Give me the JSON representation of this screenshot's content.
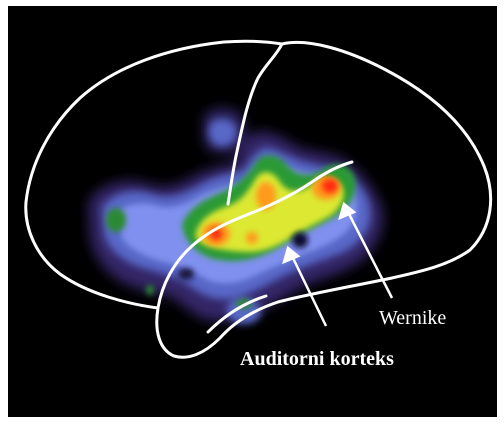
{
  "image": {
    "description_icon": "brain-activation-scan-icon",
    "background_color": "#000000",
    "outline_color": "#ffffff",
    "colormap": [
      "#3a2a7a",
      "#5a6ad0",
      "#7c8ef0",
      "#2e9a3a",
      "#d8e830",
      "#ff9a1e",
      "#ff2a10"
    ]
  },
  "labels": {
    "wernike": "Wernike",
    "auditory_cortex": "Auditorni korteks"
  }
}
